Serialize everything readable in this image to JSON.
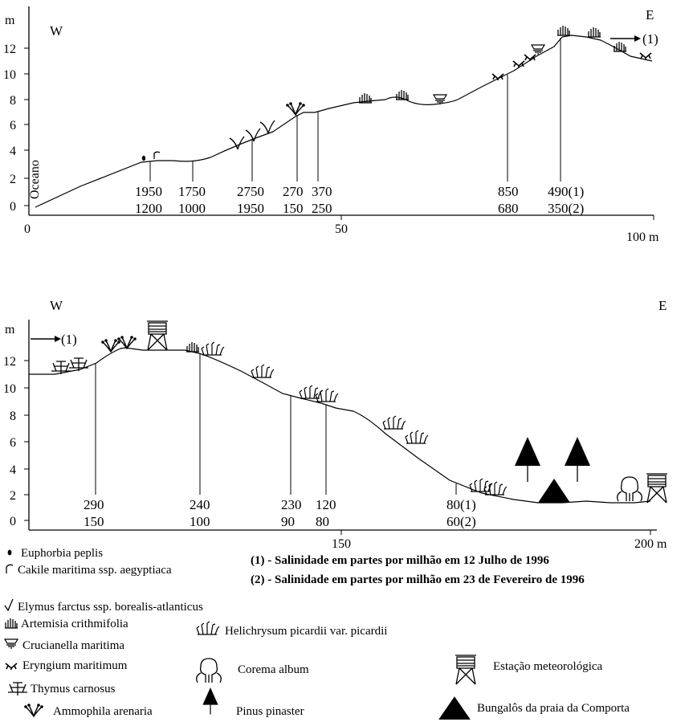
{
  "profile_top": {
    "west": "W",
    "east": "E",
    "ocean": "Oceano",
    "y_unit": "m",
    "y_ticks": [
      "0",
      "2",
      "4",
      "6",
      "8",
      "10",
      "12"
    ],
    "x_ticks": [
      "0",
      "50",
      "100 m"
    ],
    "continue_marker": "(1)",
    "samples": [
      {
        "s1": "1950",
        "s2": "1200"
      },
      {
        "s1": "1750",
        "s2": "1000"
      },
      {
        "s1": "2750",
        "s2": "1950"
      },
      {
        "s1": "270",
        "s2": "150"
      },
      {
        "s1": "370",
        "s2": "250"
      },
      {
        "s1": "850",
        "s2": "680"
      },
      {
        "s1": "490(1)",
        "s2": "350(2)"
      }
    ]
  },
  "profile_bottom": {
    "west": "W",
    "east": "E",
    "y_unit": "m",
    "y_ticks": [
      "0",
      "2",
      "4",
      "6",
      "8",
      "10",
      "12"
    ],
    "x_ticks": [
      "150",
      "200 m"
    ],
    "continue_marker": "(1)",
    "samples": [
      {
        "s1": "290",
        "s2": "150"
      },
      {
        "s1": "240",
        "s2": "100"
      },
      {
        "s1": "230",
        "s2": "90"
      },
      {
        "s1": "120",
        "s2": "80"
      },
      {
        "s1": "80(1)",
        "s2": "60(2)"
      }
    ]
  },
  "notes": [
    "(1) - Salinidade em partes por milhão em 12 Julho de 1996",
    "(2) - Salinidade em partes por milhão em 23 de Fevereiro de 1996"
  ],
  "legend": {
    "euphorbia": "Euphorbia peplis",
    "cakile": "Cakile maritima ssp. aegyptiaca",
    "elymus": "Elymus farctus ssp. borealis-atlanticus",
    "artemisia": "Artemisia crithmifolia",
    "helichrysum": "Helichrysum picardii var. picardii",
    "crucianella": "Crucianella maritima",
    "eryngium": "Eryngium maritimum",
    "corema": "Corema album",
    "estacao": "Estação meteorológica",
    "thymus": "Thymus carnosus",
    "ammophila": "Ammophila arenaria",
    "pinus": "Pinus pinaster",
    "bungalos": "Bungalôs da praia da Comporta"
  }
}
